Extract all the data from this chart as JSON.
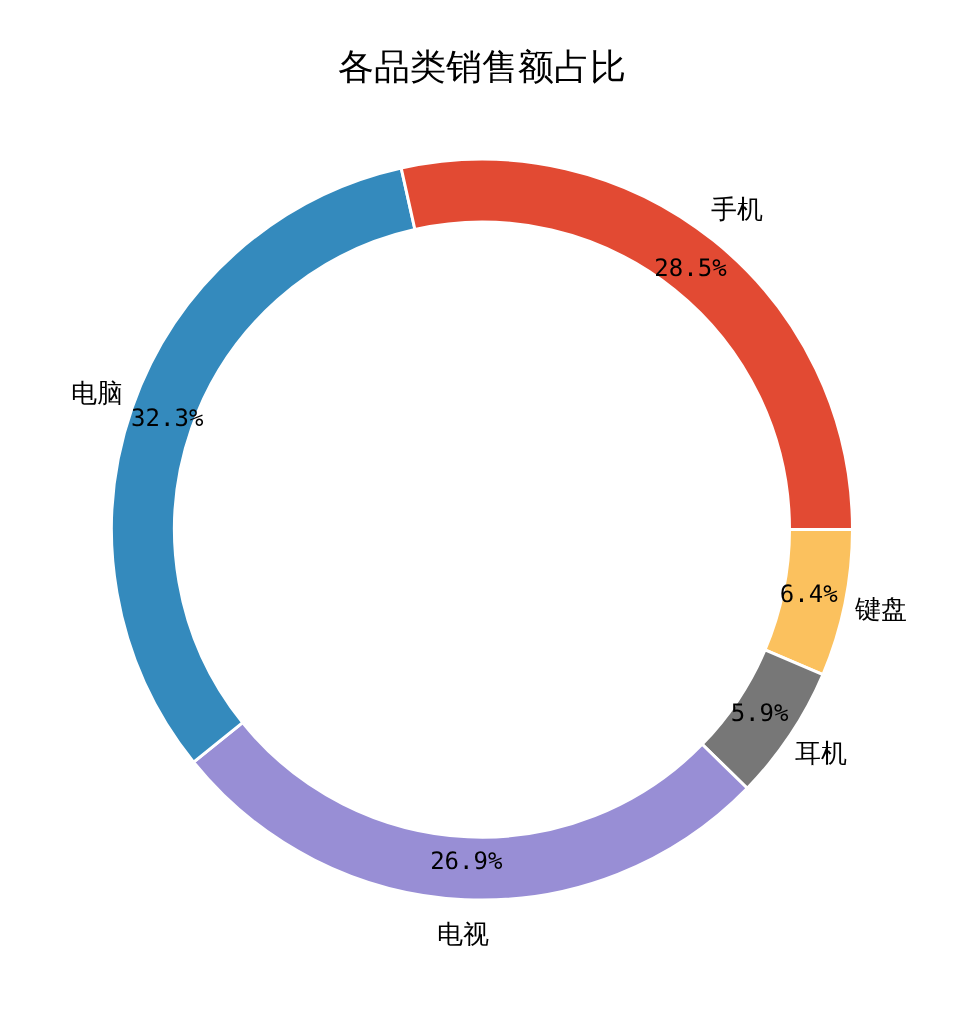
{
  "chart_data": {
    "type": "donut",
    "title": "各品类销售额占比",
    "categories": [
      "手机",
      "电脑",
      "电视",
      "耳机",
      "键盘"
    ],
    "values": [
      28.5,
      32.3,
      26.9,
      5.9,
      6.4
    ],
    "value_labels": [
      "28.5%",
      "32.3%",
      "26.9%",
      "5.9%",
      "6.4%"
    ],
    "colors": [
      "#e24a33",
      "#348abd",
      "#988ed5",
      "#777777",
      "#fbc15e"
    ],
    "legend": false
  }
}
